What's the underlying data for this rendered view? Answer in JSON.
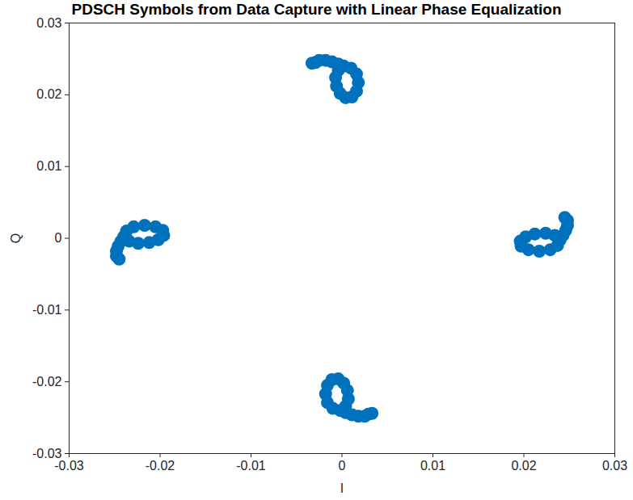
{
  "chart_data": {
    "type": "scatter",
    "title": "PDSCH Symbols from Data Capture with Linear Phase Equalization",
    "x_label": "I",
    "y_label": "Q",
    "color": "#0072bd",
    "marker": "circle",
    "grid": false,
    "xlim": [
      -0.03,
      0.03
    ],
    "ylim": [
      -0.03,
      0.03
    ],
    "xticks": [
      -0.03,
      -0.02,
      -0.01,
      0,
      0.01,
      0.02,
      0.03
    ],
    "yticks": [
      -0.03,
      -0.02,
      -0.01,
      0,
      0.01,
      0.02,
      0.03
    ],
    "x": [
      0.024,
      0.0234,
      0.0224,
      0.0212,
      0.0202,
      0.0196,
      0.0197,
      0.0205,
      0.0217,
      0.0229,
      0.0237,
      0.0243,
      0.0246,
      0.0248,
      0.0248,
      0.0245,
      0.0002,
      -0.0004,
      -0.0007,
      -0.0006,
      -0.0002,
      0.0004,
      0.0011,
      0.0016,
      0.0018,
      0.0016,
      0.001,
      -0.0004,
      -0.0011,
      -0.0018,
      -0.0025,
      -0.0029,
      -0.0033,
      -0.024,
      -0.0234,
      -0.0224,
      -0.0212,
      -0.0202,
      -0.0196,
      -0.0197,
      -0.0205,
      -0.0217,
      -0.0229,
      -0.0237,
      -0.0243,
      -0.0246,
      -0.0248,
      -0.0248,
      -0.0245,
      -0.0002,
      0.0004,
      0.0007,
      0.0006,
      0.0002,
      -0.0004,
      -0.0011,
      -0.0016,
      -0.0018,
      -0.0016,
      -0.001,
      0.0004,
      0.0011,
      0.0018,
      0.0025,
      0.0029,
      0.0033
    ],
    "y": [
      -0.0002,
      0.0004,
      0.0007,
      0.0006,
      0.0002,
      -0.0004,
      -0.0011,
      -0.0016,
      -0.0018,
      -0.0016,
      -0.001,
      0.0004,
      0.0011,
      0.0018,
      0.0025,
      0.0029,
      0.024,
      0.0234,
      0.0224,
      0.0212,
      0.0202,
      0.0196,
      0.0197,
      0.0205,
      0.0217,
      0.0229,
      0.0237,
      0.0243,
      0.0246,
      0.0248,
      0.0248,
      0.0245,
      0.0244,
      0.0002,
      -0.0004,
      -0.0007,
      -0.0006,
      -0.0002,
      0.0004,
      0.0011,
      0.0016,
      0.0018,
      0.0016,
      0.001,
      -0.0004,
      -0.0011,
      -0.0018,
      -0.0025,
      -0.0029,
      -0.024,
      -0.0234,
      -0.0224,
      -0.0212,
      -0.0202,
      -0.0196,
      -0.0197,
      -0.0205,
      -0.0217,
      -0.0229,
      -0.0237,
      -0.0243,
      -0.0246,
      -0.0248,
      -0.0248,
      -0.0245,
      -0.0244
    ]
  }
}
